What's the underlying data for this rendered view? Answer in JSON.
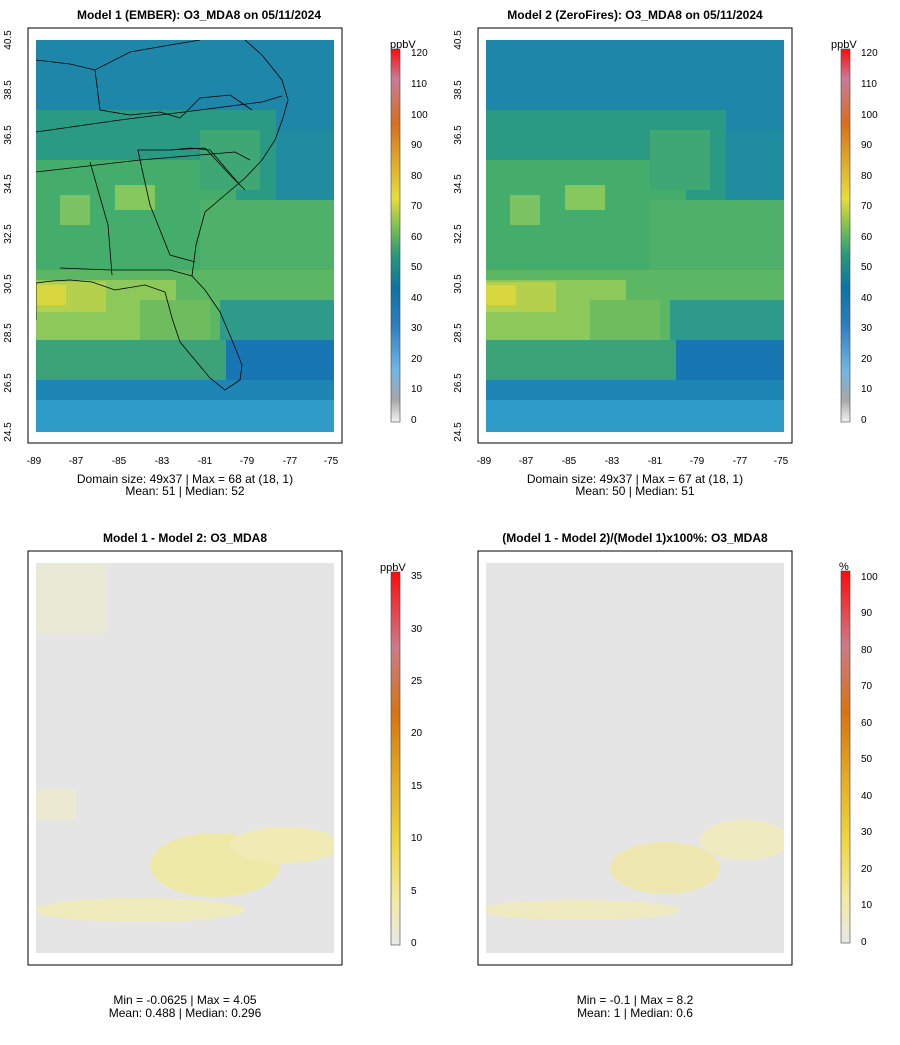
{
  "panels": [
    {
      "id": "model1",
      "title": "Model 1 (EMBER): O3_MDA8 on 05/11/2024",
      "colorbar": {
        "unit": "ppbV",
        "ticks": [
          "120",
          "110",
          "100",
          "90",
          "80",
          "70",
          "60",
          "50",
          "40",
          "30",
          "20",
          "10",
          "0"
        ]
      },
      "field": {
        "kind": "absolute",
        "mean": 51,
        "median": 52,
        "max": 68,
        "max_at": [
          18,
          1
        ],
        "grid": [
          49,
          37
        ]
      },
      "x_ticks": [
        "-89",
        "-87",
        "-85",
        "-83",
        "-81",
        "-79",
        "-77",
        "-75"
      ],
      "y_ticks": [
        "40.5",
        "38.5",
        "36.5",
        "34.5",
        "32.5",
        "30.5",
        "28.5",
        "26.5",
        "24.5"
      ],
      "stats_line1": "Domain size: 49x37 | Max = 68 at (18, 1)",
      "stats_line2": "Mean: 51 |  Median: 52"
    },
    {
      "id": "model2",
      "title": "Model 2 (ZeroFires): O3_MDA8 on 05/11/2024",
      "colorbar": {
        "unit": "ppbV",
        "ticks": [
          "120",
          "110",
          "100",
          "90",
          "80",
          "70",
          "60",
          "50",
          "40",
          "30",
          "20",
          "10",
          "0"
        ]
      },
      "field": {
        "kind": "absolute",
        "mean": 50,
        "median": 51,
        "max": 67,
        "max_at": [
          18,
          1
        ],
        "grid": [
          49,
          37
        ]
      },
      "x_ticks": [
        "-89",
        "-87",
        "-85",
        "-83",
        "-81",
        "-79",
        "-77",
        "-75"
      ],
      "y_ticks": [
        "40.5",
        "38.5",
        "36.5",
        "34.5",
        "32.5",
        "30.5",
        "28.5",
        "26.5",
        "24.5"
      ],
      "stats_line1": "Domain size: 49x37 | Max = 67 at (18, 1)",
      "stats_line2": "Mean: 50 |  Median: 51"
    },
    {
      "id": "diff",
      "title": "Model 1 - Model 2: O3_MDA8",
      "colorbar": {
        "unit": "ppbV",
        "ticks": [
          "35",
          "30",
          "25",
          "20",
          "15",
          "10",
          "5",
          "0"
        ]
      },
      "field": {
        "kind": "difference",
        "min": -0.0625,
        "max": 4.05,
        "mean": 0.488,
        "median": 0.296
      },
      "stats_line1": "Min = -0.0625 | Max = 4.05",
      "stats_line2": "Mean: 0.488 |  Median: 0.296"
    },
    {
      "id": "pct",
      "title": "(Model 1 - Model 2)/(Model 1)x100%: O3_MDA8",
      "colorbar": {
        "unit": "%",
        "ticks": [
          "100",
          "90",
          "80",
          "70",
          "60",
          "50",
          "40",
          "30",
          "20",
          "10",
          "0"
        ]
      },
      "field": {
        "kind": "percent",
        "min": -0.1,
        "max": 8.2,
        "mean": 1,
        "median": 0.6
      },
      "stats_line1": "Min = -0.1 | Max = 8.2",
      "stats_line2": "Mean: 1 |  Median: 0.6"
    }
  ]
}
